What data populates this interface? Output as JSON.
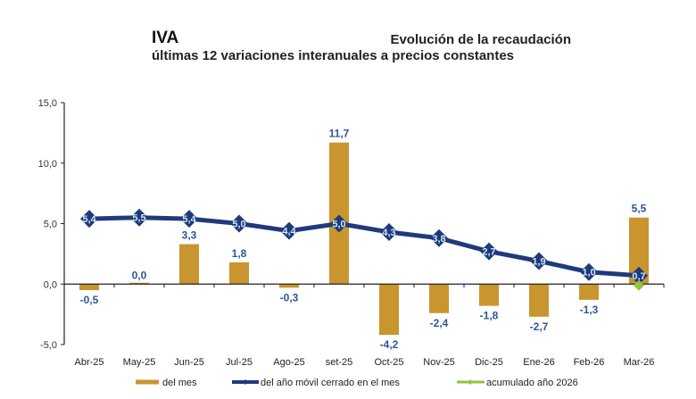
{
  "header": {
    "title": "IVA",
    "title_right": "Evolución de la recaudación",
    "subtitle": "últimas 12 variaciones interanuales a precios constantes"
  },
  "colors": {
    "bar": "#C9952F",
    "line": "#1F3A7A",
    "accum": "#8DC63F",
    "bar_label": "#2F5597",
    "point_label": "#CFE6F7"
  },
  "chart_data": {
    "type": "bar+line",
    "title": "IVA — Evolución de la recaudación",
    "subtitle": "últimas 12 variaciones interanuales a precios constantes",
    "xlabel": "",
    "ylabel": "",
    "ylim": [
      -5.0,
      15.0
    ],
    "yticks": [
      15.0,
      10.0,
      5.0,
      0.0,
      -5.0
    ],
    "ytick_labels": [
      "15,0",
      "10,0",
      "5,0",
      "0,0",
      "-5,0"
    ],
    "grid": false,
    "legend_position": "bottom",
    "categories": [
      "Abr-25",
      "May-25",
      "Jun-25",
      "Jul-25",
      "Ago-25",
      "set-25",
      "Oct-25",
      "Nov-25",
      "Dic-25",
      "Ene-26",
      "Feb-26",
      "Mar-26"
    ],
    "series": [
      {
        "name": "del mes",
        "type": "bar",
        "values": [
          -0.5,
          0.0,
          3.3,
          1.8,
          -0.3,
          11.7,
          -4.2,
          -2.4,
          -1.8,
          -2.7,
          -1.3,
          5.5
        ],
        "labels": [
          "-0,5",
          "0,0",
          "3,3",
          "1,8",
          "-0,3",
          "11,7",
          "-4,2",
          "-2,4",
          "-1,8",
          "-2,7",
          "-1,3",
          "5,5"
        ]
      },
      {
        "name": "del año móvil cerrado en el mes",
        "type": "line",
        "values": [
          5.4,
          5.5,
          5.4,
          5.0,
          4.4,
          5.0,
          4.3,
          3.8,
          2.7,
          1.9,
          1.0,
          0.7
        ],
        "labels": [
          "5,4",
          "5,5",
          "5,4",
          "5,0",
          "4,4",
          "5,0",
          "4,3",
          "3,8",
          "2,7",
          "1,9",
          "1,0",
          "0,7"
        ]
      },
      {
        "name": "acumulado año 2026",
        "type": "line",
        "values": [
          null,
          null,
          null,
          null,
          null,
          null,
          null,
          null,
          null,
          null,
          null,
          -0.1
        ],
        "labels": []
      }
    ]
  }
}
